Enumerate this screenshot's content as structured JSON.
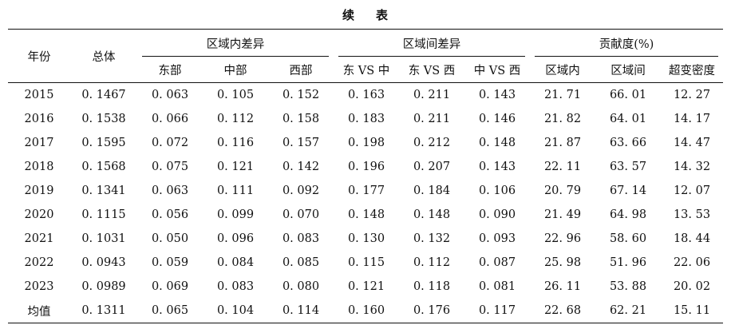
{
  "caption": [
    "续",
    "表"
  ],
  "headers": {
    "year": "年份",
    "total": "总体",
    "groups": [
      {
        "label": "区域内差异",
        "sub": [
          "东部",
          "中部",
          "西部"
        ]
      },
      {
        "label": "区域间差异",
        "sub": [
          "东 VS 中",
          "东 VS 西",
          "中 VS 西"
        ]
      },
      {
        "label": "贡献度(%)",
        "sub": [
          "区域内",
          "区域间",
          "超变密度"
        ]
      }
    ]
  },
  "rows": [
    [
      "2015",
      "0. 1467",
      "0. 063",
      "0. 105",
      "0. 152",
      "0. 163",
      "0. 211",
      "0. 143",
      "21. 71",
      "66. 01",
      "12. 27"
    ],
    [
      "2016",
      "0. 1538",
      "0. 066",
      "0. 112",
      "0. 158",
      "0. 183",
      "0. 211",
      "0. 146",
      "21. 82",
      "64. 01",
      "14. 17"
    ],
    [
      "2017",
      "0. 1595",
      "0. 072",
      "0. 116",
      "0. 157",
      "0. 198",
      "0. 212",
      "0. 148",
      "21. 87",
      "63. 66",
      "14. 47"
    ],
    [
      "2018",
      "0. 1568",
      "0. 075",
      "0. 121",
      "0. 142",
      "0. 196",
      "0. 207",
      "0. 143",
      "22. 11",
      "63. 57",
      "14. 32"
    ],
    [
      "2019",
      "0. 1341",
      "0. 063",
      "0. 111",
      "0. 092",
      "0. 177",
      "0. 184",
      "0. 106",
      "20. 79",
      "67. 14",
      "12. 07"
    ],
    [
      "2020",
      "0. 1115",
      "0. 056",
      "0. 099",
      "0. 070",
      "0. 148",
      "0. 148",
      "0. 090",
      "21. 49",
      "64. 98",
      "13. 53"
    ],
    [
      "2021",
      "0. 1031",
      "0. 050",
      "0. 096",
      "0. 083",
      "0. 130",
      "0. 132",
      "0. 093",
      "22. 96",
      "58. 60",
      "18. 44"
    ],
    [
      "2022",
      "0. 0943",
      "0. 059",
      "0. 084",
      "0. 085",
      "0. 115",
      "0. 112",
      "0. 087",
      "25. 98",
      "51. 96",
      "22. 06"
    ],
    [
      "2023",
      "0. 0989",
      "0. 069",
      "0. 083",
      "0. 080",
      "0. 121",
      "0. 118",
      "0. 081",
      "26. 11",
      "53. 88",
      "20. 02"
    ],
    [
      "均值",
      "0. 1311",
      "0. 065",
      "0. 104",
      "0. 114",
      "0. 160",
      "0. 176",
      "0. 117",
      "22. 68",
      "62. 21",
      "15. 11"
    ]
  ]
}
